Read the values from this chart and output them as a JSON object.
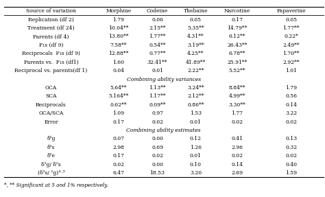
{
  "columns": [
    "Source of variation",
    "Morphine",
    "Codeine",
    "Thebaine",
    "Narcotine",
    "Papaverine"
  ],
  "section1_rows": [
    [
      "Replication (df 2)",
      "1.79",
      "0.06",
      "0.05",
      "0.17",
      "0.05"
    ],
    [
      "Treatment (df 24)",
      "10.04**",
      "2.15**",
      "5.35**",
      "14.79**",
      "1.77**"
    ],
    [
      "Parents (df 4)",
      "13.80**",
      "1.77**",
      "4.31**",
      "6.12**",
      "0.22*"
    ],
    [
      "F₁s (df 9)",
      "7.58**",
      "0.54**",
      "3.19**",
      "26.43**",
      "2.49**"
    ],
    [
      "Reciprocals  F₁s (df 9)",
      "12.88**",
      "0.77**",
      "4.25**",
      "6.78**",
      "1.70**"
    ],
    [
      "Parents vs.  F₁s (df1)",
      "1.60",
      "32.41**",
      "41.89**",
      "25.91**",
      "2.92**"
    ],
    [
      "Reciprocal vs. parents(df 1)",
      "0.04",
      "0.01",
      "2.22**",
      "5.52**",
      "1.01"
    ]
  ],
  "section2_header": "Combining ability variances",
  "section2_rows": [
    [
      "GCA",
      "5.64**",
      "1.13**",
      "3.24**",
      "8.84**",
      "1.79"
    ],
    [
      "SCA",
      "5.164**",
      "1.17**",
      "2.12**",
      "4.99**",
      "0.56"
    ],
    [
      "Reciprocals",
      "0.62**",
      "0.09**",
      "0.86**",
      "3.30**",
      "0.14"
    ],
    [
      "GCA/SCA",
      "1.09",
      "0.97",
      "1.53",
      "1.77",
      "3.22"
    ],
    [
      "Error",
      "0.17",
      "0.02",
      "0.01",
      "0.02",
      "0.02"
    ]
  ],
  "section3_header": "Combining ability estimates",
  "section3_rows": [
    [
      "δ²g",
      "0.07",
      "0.00",
      "0.12",
      "0.41",
      "0.13"
    ],
    [
      "δ²s",
      "2.98",
      "0.69",
      "1.26",
      "2.96",
      "0.32"
    ],
    [
      "δ²e",
      "0.17",
      "0.02",
      "0.01",
      "0.02",
      "0.02"
    ],
    [
      "δ²g/ δ²s",
      "0.02",
      "0.00",
      "0.10",
      "0.14",
      "0.40"
    ],
    [
      "(δ²s/ ²g)°⋅⁵",
      "6.47",
      "18.53",
      "3.20",
      "2.69",
      "1.59"
    ]
  ],
  "footnote": "*, ** Significant at 5 and 1% respectively.",
  "fontsize": 5.5,
  "footnote_fontsize": 5.2
}
